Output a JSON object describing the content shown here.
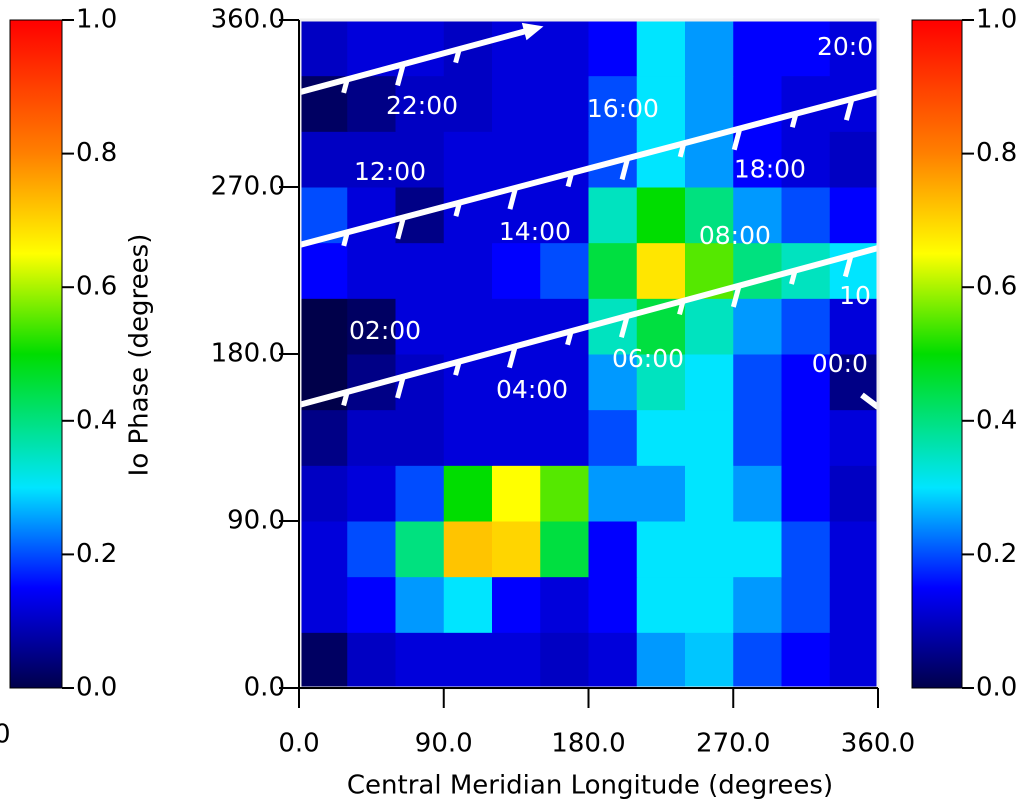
{
  "chart_data": {
    "type": "heatmap",
    "x_label": "Central Meridian Longitude (degrees)",
    "y_label": "Io Phase (degrees)",
    "xlim": [
      0,
      360
    ],
    "ylim": [
      0,
      360
    ],
    "xticks": [
      {
        "value": 0,
        "label": "0.0"
      },
      {
        "value": 90,
        "label": "90.0"
      },
      {
        "value": 180,
        "label": "180.0"
      },
      {
        "value": 270,
        "label": "270.0"
      },
      {
        "value": 360,
        "label": "360.0"
      }
    ],
    "yticks": [
      {
        "value": 0,
        "label": "0.0"
      },
      {
        "value": 90,
        "label": "90.0"
      },
      {
        "value": 180,
        "label": "180.0"
      },
      {
        "value": 270,
        "label": "270.0"
      },
      {
        "value": 360,
        "label": "360.0"
      }
    ],
    "z": [
      [
        0.02,
        0.1,
        0.12,
        0.12,
        0.12,
        0.1,
        0.12,
        0.25,
        0.28,
        0.2,
        0.15,
        0.12
      ],
      [
        0.12,
        0.15,
        0.25,
        0.3,
        0.15,
        0.12,
        0.15,
        0.3,
        0.3,
        0.25,
        0.2,
        0.12
      ],
      [
        0.12,
        0.2,
        0.4,
        0.72,
        0.7,
        0.45,
        0.15,
        0.3,
        0.3,
        0.3,
        0.2,
        0.12
      ],
      [
        0.1,
        0.12,
        0.2,
        0.5,
        0.65,
        0.55,
        0.25,
        0.25,
        0.3,
        0.25,
        0.15,
        0.1
      ],
      [
        0.05,
        0.1,
        0.1,
        0.12,
        0.12,
        0.12,
        0.2,
        0.3,
        0.3,
        0.2,
        0.15,
        0.12
      ],
      [
        0.0,
        0.05,
        0.1,
        0.12,
        0.12,
        0.12,
        0.25,
        0.35,
        0.3,
        0.2,
        0.15,
        0.05
      ],
      [
        0.0,
        0.02,
        0.12,
        0.12,
        0.12,
        0.12,
        0.35,
        0.45,
        0.35,
        0.25,
        0.2,
        0.12
      ],
      [
        0.15,
        0.12,
        0.12,
        0.12,
        0.15,
        0.2,
        0.45,
        0.68,
        0.55,
        0.4,
        0.35,
        0.3
      ],
      [
        0.2,
        0.12,
        0.05,
        0.12,
        0.12,
        0.12,
        0.35,
        0.5,
        0.4,
        0.25,
        0.2,
        0.15
      ],
      [
        0.1,
        0.1,
        0.1,
        0.12,
        0.12,
        0.12,
        0.2,
        0.3,
        0.25,
        0.15,
        0.12,
        0.1
      ],
      [
        0.02,
        0.05,
        0.1,
        0.1,
        0.12,
        0.12,
        0.2,
        0.3,
        0.25,
        0.15,
        0.12,
        0.12
      ],
      [
        0.1,
        0.12,
        0.12,
        0.1,
        0.12,
        0.12,
        0.15,
        0.3,
        0.25,
        0.15,
        0.15,
        0.12
      ]
    ],
    "colorscale": [
      [
        0,
        "#00004a"
      ],
      [
        0.15,
        "#0000ff"
      ],
      [
        0.3,
        "#00e5ff"
      ],
      [
        0.5,
        "#00dd00"
      ],
      [
        0.65,
        "#ffff00"
      ],
      [
        0.8,
        "#ff8000"
      ],
      [
        1,
        "#ff0000"
      ]
    ],
    "zlim": [
      0,
      1
    ],
    "zticks": [
      {
        "value": 0,
        "label": "0.0"
      },
      {
        "value": 0.2,
        "label": "0.2"
      },
      {
        "value": 0.4,
        "label": "0.4"
      },
      {
        "value": 0.6,
        "label": "0.6"
      },
      {
        "value": 0.8,
        "label": "0.8"
      },
      {
        "value": 1,
        "label": "1.0"
      }
    ],
    "corner_fragment": "0",
    "tracks": [
      {
        "color": "#ffffff",
        "x": [
          0,
          143.6
        ],
        "y": [
          321,
          354.6
        ]
      },
      {
        "color": "#ffffff",
        "x": [
          0,
          360
        ],
        "y": [
          238.7,
          321.2
        ]
      },
      {
        "color": "#ffffff",
        "x": [
          0,
          360
        ],
        "y": [
          152.5,
          237.1
        ]
      },
      {
        "color": "#ffffff",
        "x": [
          350,
          360
        ],
        "y": [
          157.9,
          151.4
        ]
      }
    ],
    "annotations": [
      {
        "text": "22:00",
        "x": 76.5,
        "y": 313
      },
      {
        "text": "16:00",
        "x": 201.4,
        "y": 311.5
      },
      {
        "text": "20:0",
        "x": 339.5,
        "y": 344.9
      },
      {
        "text": "12:00",
        "x": 56.6,
        "y": 277.5
      },
      {
        "text": "18:00",
        "x": 292.8,
        "y": 279
      },
      {
        "text": "14:00",
        "x": 146.7,
        "y": 245.2
      },
      {
        "text": "08:00",
        "x": 271,
        "y": 243
      },
      {
        "text": "10",
        "x": 345.7,
        "y": 210.7
      },
      {
        "text": "02:00",
        "x": 53.5,
        "y": 191.8
      },
      {
        "text": "06:00",
        "x": 217,
        "y": 176.8
      },
      {
        "text": "00:0",
        "x": 336.3,
        "y": 174
      },
      {
        "text": "04:00",
        "x": 144.9,
        "y": 160
      }
    ]
  }
}
